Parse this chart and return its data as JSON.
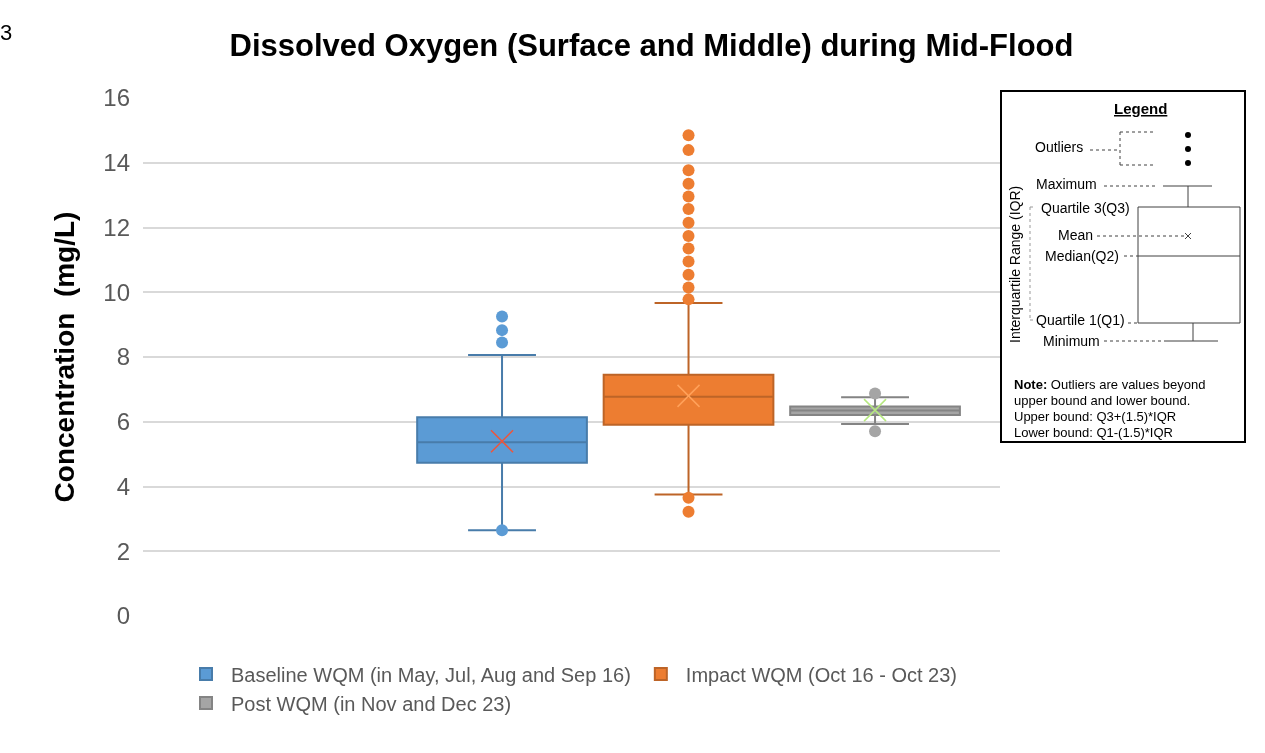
{
  "chart_data": {
    "type": "box",
    "title": "Dissolved Oxygen (Surface and Middle) during Mid-Flood",
    "ylabel": "Concentration  (mg/L)",
    "categories": [
      null
    ],
    "series": [
      {
        "name": "Baseline WQM (in May, Jul, Aug and Sep 16)",
        "color": "#5b9bd5",
        "boxes": [
          {
            "low": 2.65,
            "q1": 4.73,
            "median": 5.37,
            "q3": 6.14,
            "high": 8.06,
            "mean": 5.4,
            "outliers": [
              9.25,
              8.83,
              8.45,
              2.65
            ]
          }
        ]
      },
      {
        "name": "Impact WQM (Oct 16 - Oct 23)",
        "color": "#ed7d31",
        "boxes": [
          {
            "low": 3.75,
            "q1": 5.91,
            "median": 6.77,
            "q3": 7.45,
            "high": 9.67,
            "mean": 6.8,
            "outliers": [
              14.85,
              14.39,
              13.77,
              13.35,
              12.96,
              12.57,
              12.15,
              11.74,
              11.35,
              10.95,
              10.54,
              10.15,
              9.78,
              3.65,
              3.22
            ]
          }
        ]
      },
      {
        "name": "Post WQM (in Nov and Dec 23)",
        "color": "#a5a5a5",
        "boxes": [
          {
            "low": 5.93,
            "q1": 6.21,
            "median": 6.35,
            "q3": 6.47,
            "high": 6.76,
            "mean": 6.36,
            "outliers": [
              6.87,
              5.71
            ]
          }
        ]
      }
    ],
    "ylim": [
      0,
      16
    ],
    "yticks": [
      0,
      2,
      4,
      6,
      8,
      10,
      12,
      14,
      16
    ],
    "grid": "y",
    "legend": "bottom",
    "marker": "circle",
    "annotations": [
      "3",
      "Legend",
      "Outliers",
      "Maximum",
      "Quartile 3(Q3)",
      "Mean",
      "Median(Q2)",
      "Quartile 1(Q1)",
      "Minimum",
      "Interquartile Range (IQR)",
      "Note: Outliers are values beyond",
      "upper bound and lower bound.",
      "Upper bound: Q3+(1.5)*IQR",
      "Lower bound: Q1-(1.5)*IQR"
    ]
  }
}
